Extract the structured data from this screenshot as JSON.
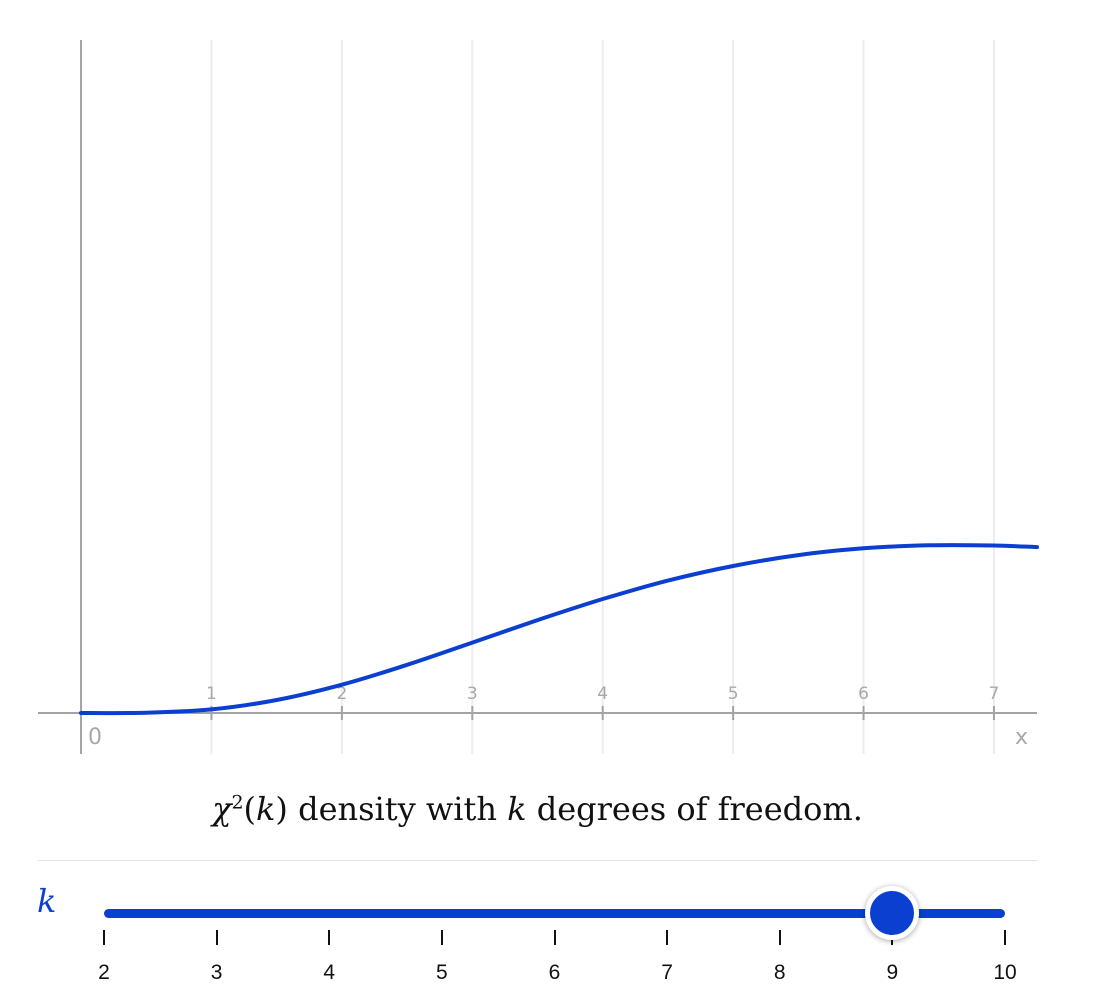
{
  "chart_data": {
    "type": "line",
    "title": "",
    "xlabel": "x",
    "ylabel": "",
    "xlim": [
      -0.33,
      7.33
    ],
    "ylim": [
      0,
      0.45
    ],
    "x_ticks": [
      "1",
      "2",
      "3",
      "4",
      "5",
      "6",
      "7"
    ],
    "origin_label": "0",
    "grid": "vertical",
    "series": [
      {
        "color": "#0b3fd0",
        "x": [
          0,
          0.5,
          1,
          1.5,
          2,
          2.5,
          3,
          3.5,
          4,
          4.5,
          5,
          5.5,
          6,
          6.5,
          7,
          7.33
        ],
        "y": [
          0,
          0.0002,
          0.0024,
          0.0087,
          0.0189,
          0.0322,
          0.0471,
          0.0621,
          0.0762,
          0.0885,
          0.0983,
          0.1056,
          0.1101,
          0.1121,
          0.112,
          0.1109
        ]
      }
    ]
  },
  "caption": {
    "chi": "χ",
    "sup": "2",
    "open": "(",
    "k1": "k",
    "close": ")",
    "text1": " density with ",
    "k2": "k",
    "text2": " degrees of freedom."
  },
  "slider": {
    "label": "k",
    "min": 2,
    "max": 10,
    "value": 9,
    "tick_labels": [
      "2",
      "3",
      "4",
      "5",
      "6",
      "7",
      "8",
      "9",
      "10"
    ],
    "color": "#0b3fd0"
  }
}
